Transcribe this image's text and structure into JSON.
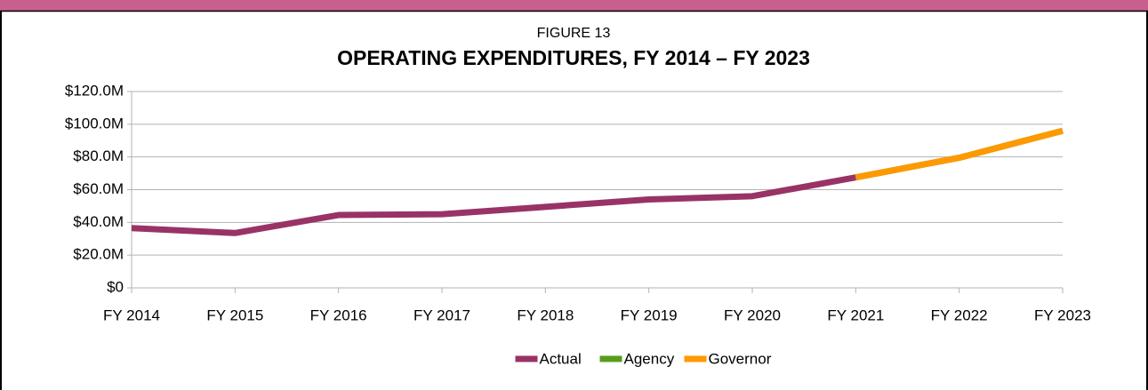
{
  "chart_data": {
    "type": "line",
    "figure_label": "FIGURE 13",
    "title": "OPERATING EXPENDITURES, FY 2014 – FY 2023",
    "categories": [
      "FY 2014",
      "FY 2015",
      "FY 2016",
      "FY 2017",
      "FY 2018",
      "FY 2019",
      "FY 2020",
      "FY 2021",
      "FY 2022",
      "FY 2023"
    ],
    "series": [
      {
        "name": "Actual",
        "color": "#993366",
        "values": [
          36.5,
          33.5,
          44.5,
          45,
          49.5,
          54,
          56,
          67.5,
          null,
          null
        ]
      },
      {
        "name": "Agency",
        "color": "#579d1c",
        "values": [
          null,
          null,
          null,
          null,
          null,
          null,
          null,
          67.5,
          79.5,
          96
        ]
      },
      {
        "name": "Governor",
        "color": "#ff9900",
        "values": [
          null,
          null,
          null,
          null,
          null,
          null,
          null,
          67.5,
          79.5,
          96
        ]
      }
    ],
    "ylim": [
      0,
      120
    ],
    "yticks": [
      {
        "value": 0,
        "label": "$0"
      },
      {
        "value": 20,
        "label": "$20.0M"
      },
      {
        "value": 40,
        "label": "$40.0M"
      },
      {
        "value": 60,
        "label": "$60.0M"
      },
      {
        "value": 80,
        "label": "$80.0M"
      },
      {
        "value": 100,
        "label": "$100.0M"
      },
      {
        "value": 120,
        "label": "$120.0M"
      }
    ],
    "grid": true,
    "legend": "bottom"
  }
}
